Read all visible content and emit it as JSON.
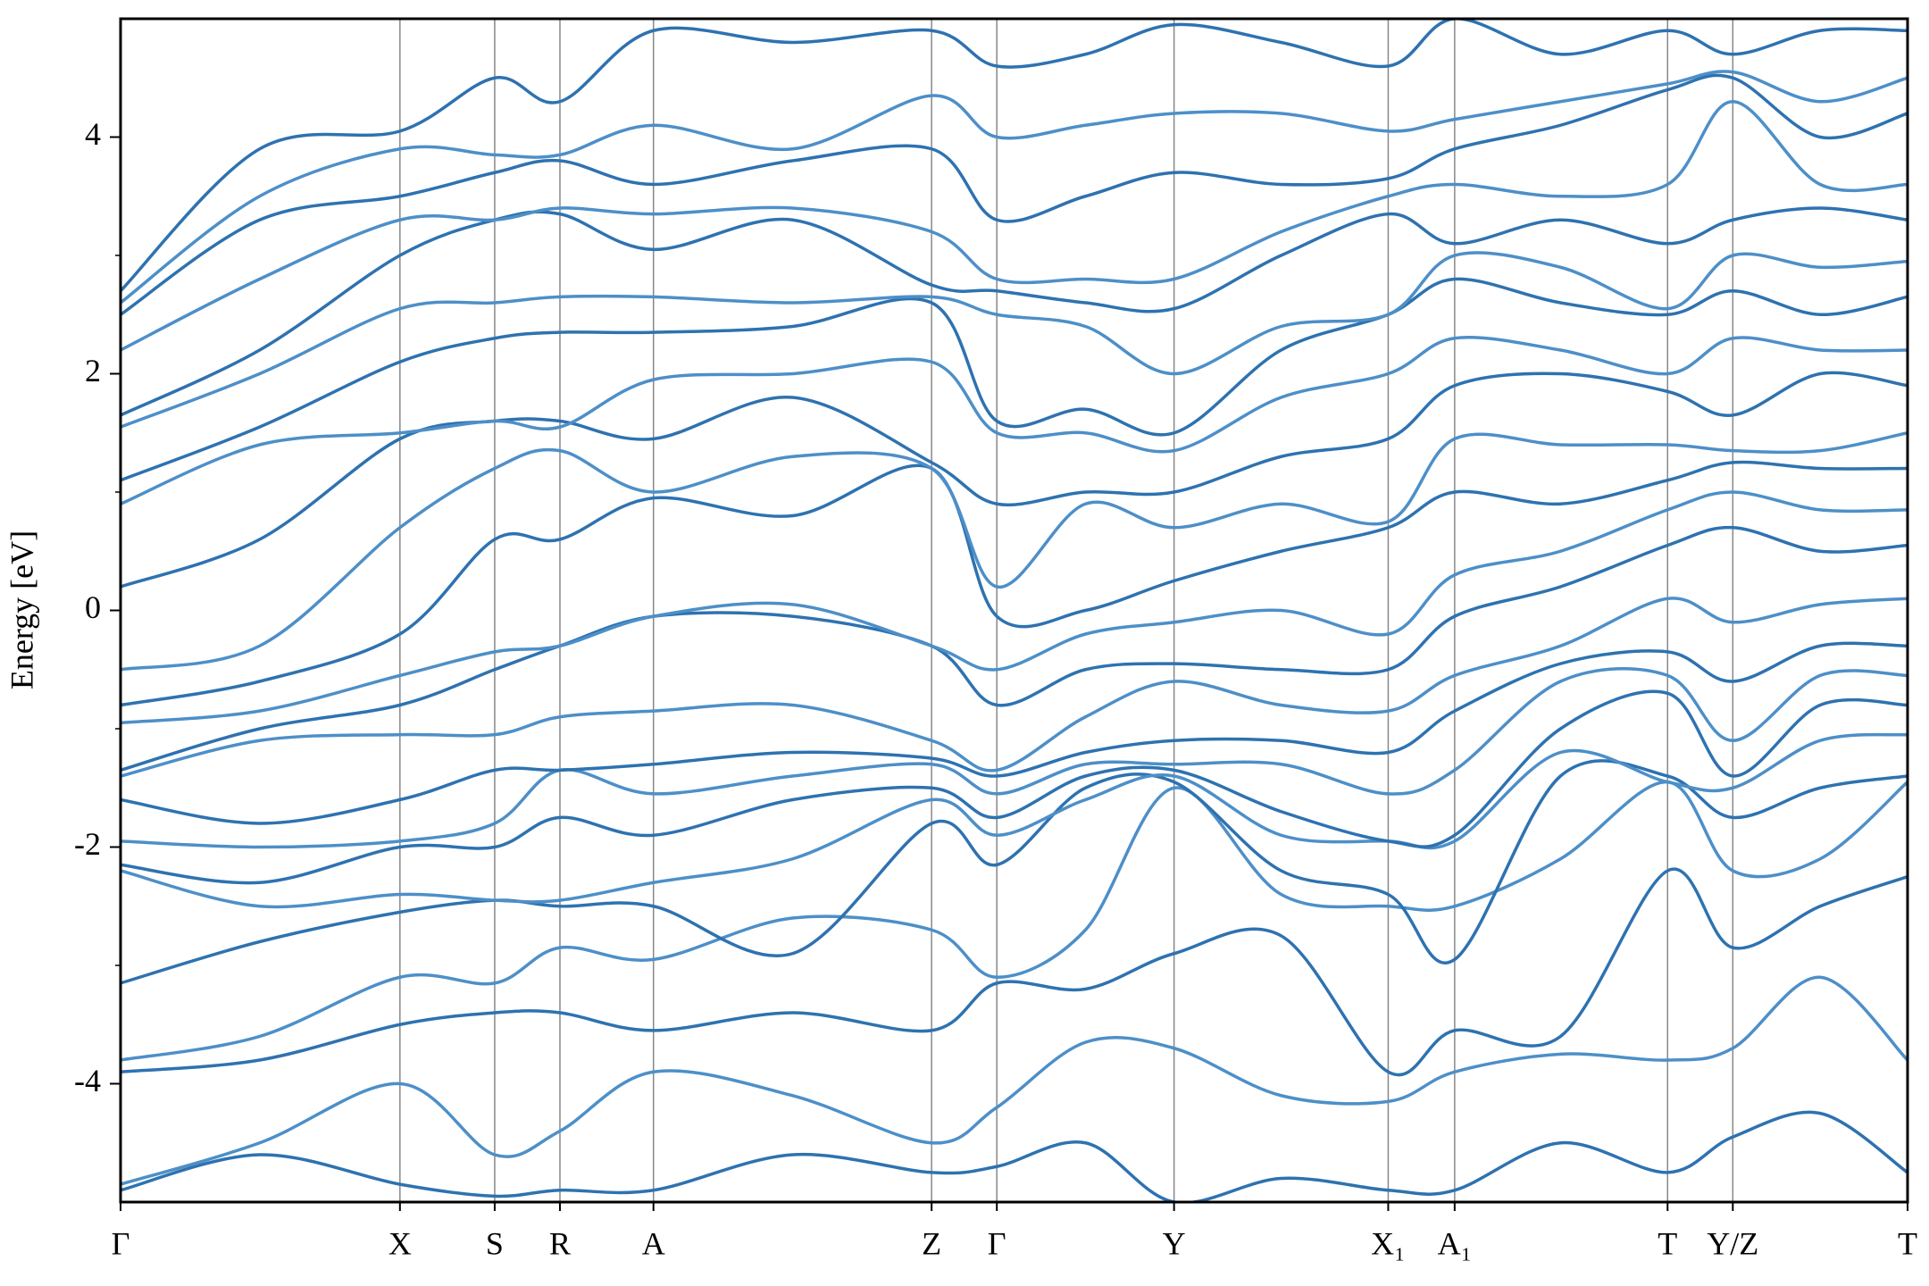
{
  "chart_data": {
    "type": "line",
    "y_label": "Energy [eV]",
    "x": [
      0,
      1.13,
      2.27,
      3.04,
      3.57,
      4.33,
      5.46,
      6.59,
      7.12,
      7.84,
      8.56,
      9.43,
      10.3,
      10.84,
      11.7,
      12.57,
      13.1,
      13.81,
      14.52
    ],
    "xlim": [
      0,
      14.52
    ],
    "xticks": [
      {
        "value": 0,
        "label": "Γ"
      },
      {
        "value": 2.27,
        "label": "X"
      },
      {
        "value": 3.04,
        "label": "S"
      },
      {
        "value": 3.57,
        "label": "R"
      },
      {
        "value": 4.33,
        "label": "A"
      },
      {
        "value": 6.59,
        "label": "Z"
      },
      {
        "value": 7.12,
        "label": "Γ"
      },
      {
        "value": 8.56,
        "label": "Y"
      },
      {
        "value": 10.3,
        "label": "X₁"
      },
      {
        "value": 10.84,
        "label": "A₁"
      },
      {
        "value": 12.57,
        "label": "T"
      },
      {
        "value": 13.1,
        "label": "Y/Z"
      },
      {
        "value": 14.52,
        "label": "T"
      }
    ],
    "ylim": [
      -5,
      5
    ],
    "yticks": [
      -4,
      -2,
      0,
      2,
      4
    ],
    "yminor": [
      -3,
      -1,
      1,
      3
    ],
    "kpoint_lines": true,
    "series": [
      {
        "color": "#2e72b0",
        "values": [
          -4.9,
          -4.6,
          -4.85,
          -4.95,
          -4.9,
          -4.9,
          -4.6,
          -4.75,
          -4.7,
          -4.5,
          -5.0,
          -4.8,
          -4.9,
          -4.9,
          -4.5,
          -4.75,
          -4.45,
          -4.25,
          -4.75
        ]
      },
      {
        "color": "#4d8fc8",
        "values": [
          -4.85,
          -4.5,
          -4.0,
          -4.6,
          -4.4,
          -3.9,
          -4.1,
          -4.5,
          -4.2,
          -3.65,
          -3.7,
          -4.1,
          -4.15,
          -3.9,
          -3.75,
          -3.8,
          -3.7,
          -3.1,
          -3.8
        ]
      },
      {
        "color": "#2e72b0",
        "values": [
          -3.9,
          -3.8,
          -3.5,
          -3.4,
          -3.4,
          -3.55,
          -3.4,
          -3.55,
          -3.15,
          -3.2,
          -2.9,
          -2.75,
          -3.9,
          -3.55,
          -3.6,
          -2.2,
          -2.85,
          -2.5,
          -2.25
        ]
      },
      {
        "color": "#4d8fc8",
        "values": [
          -3.8,
          -3.6,
          -3.1,
          -3.15,
          -2.85,
          -2.95,
          -2.6,
          -2.7,
          -3.1,
          -2.7,
          -1.5,
          -2.4,
          -2.5,
          -2.5,
          -2.1,
          -1.45,
          -2.2,
          -2.1,
          -1.45
        ]
      },
      {
        "color": "#2e72b0",
        "values": [
          -3.15,
          -2.8,
          -2.55,
          -2.45,
          -2.5,
          -2.5,
          -2.9,
          -1.8,
          -2.15,
          -1.5,
          -1.45,
          -2.2,
          -2.4,
          -2.95,
          -1.4,
          -1.4,
          -1.75,
          -1.5,
          -1.4
        ]
      },
      {
        "color": "#4d8fc8",
        "values": [
          -2.2,
          -2.5,
          -2.4,
          -2.45,
          -2.45,
          -2.3,
          -2.1,
          -1.6,
          -1.9,
          -1.6,
          -1.4,
          -1.9,
          -1.95,
          -1.95,
          -1.2,
          -1.45,
          -1.5,
          -1.1,
          -1.05
        ]
      },
      {
        "color": "#2e72b0",
        "values": [
          -2.15,
          -2.3,
          -2.0,
          -2.0,
          -1.75,
          -1.9,
          -1.6,
          -1.5,
          -1.75,
          -1.4,
          -1.35,
          -1.7,
          -1.95,
          -1.9,
          -1.0,
          -0.7,
          -1.4,
          -0.8,
          -0.8
        ]
      },
      {
        "color": "#4d8fc8",
        "values": [
          -1.95,
          -2.0,
          -1.95,
          -1.8,
          -1.35,
          -1.55,
          -1.4,
          -1.3,
          -1.55,
          -1.3,
          -1.3,
          -1.3,
          -1.55,
          -1.35,
          -0.6,
          -0.55,
          -1.1,
          -0.55,
          -0.55
        ]
      },
      {
        "color": "#2e72b0",
        "values": [
          -1.6,
          -1.8,
          -1.6,
          -1.35,
          -1.35,
          -1.3,
          -1.2,
          -1.25,
          -1.4,
          -1.2,
          -1.1,
          -1.1,
          -1.2,
          -0.85,
          -0.45,
          -0.35,
          -0.6,
          -0.3,
          -0.3
        ]
      },
      {
        "color": "#4d8fc8",
        "values": [
          -1.4,
          -1.1,
          -1.05,
          -1.05,
          -0.9,
          -0.85,
          -0.8,
          -1.1,
          -1.35,
          -0.9,
          -0.6,
          -0.8,
          -0.85,
          -0.55,
          -0.3,
          0.1,
          -0.1,
          0.05,
          0.1
        ]
      },
      {
        "color": "#2e72b0",
        "values": [
          -1.35,
          -1.0,
          -0.8,
          -0.5,
          -0.3,
          -0.05,
          -0.05,
          -0.3,
          -0.8,
          -0.5,
          -0.45,
          -0.5,
          -0.5,
          -0.05,
          0.2,
          0.55,
          0.7,
          0.5,
          0.55
        ]
      },
      {
        "color": "#4d8fc8",
        "values": [
          -0.95,
          -0.85,
          -0.55,
          -0.35,
          -0.3,
          -0.05,
          0.05,
          -0.3,
          -0.5,
          -0.2,
          -0.1,
          0.0,
          -0.2,
          0.3,
          0.5,
          0.85,
          1.0,
          0.85,
          0.85
        ]
      },
      {
        "color": "#2e72b0",
        "values": [
          -0.8,
          -0.6,
          -0.2,
          0.6,
          0.6,
          0.95,
          0.8,
          1.2,
          -0.05,
          0.0,
          0.25,
          0.5,
          0.7,
          1.0,
          0.9,
          1.1,
          1.25,
          1.2,
          1.2
        ]
      },
      {
        "color": "#4d8fc8",
        "values": [
          -0.5,
          -0.3,
          0.7,
          1.2,
          1.35,
          1.0,
          1.3,
          1.2,
          0.2,
          0.9,
          0.7,
          0.9,
          0.75,
          1.45,
          1.4,
          1.4,
          1.35,
          1.35,
          1.5
        ]
      },
      {
        "color": "#2e72b0",
        "values": [
          0.2,
          0.6,
          1.45,
          1.6,
          1.6,
          1.45,
          1.8,
          1.25,
          0.9,
          1.0,
          1.0,
          1.3,
          1.45,
          1.9,
          2.0,
          1.85,
          1.65,
          2.0,
          1.9
        ]
      },
      {
        "color": "#4d8fc8",
        "values": [
          0.9,
          1.4,
          1.5,
          1.6,
          1.55,
          1.95,
          2.0,
          2.1,
          1.5,
          1.5,
          1.35,
          1.8,
          2.0,
          2.3,
          2.2,
          2.0,
          2.3,
          2.2,
          2.2
        ]
      },
      {
        "color": "#2e72b0",
        "values": [
          1.1,
          1.55,
          2.1,
          2.3,
          2.35,
          2.35,
          2.4,
          2.6,
          1.6,
          1.7,
          1.5,
          2.2,
          2.5,
          2.8,
          2.6,
          2.5,
          2.7,
          2.5,
          2.65
        ]
      },
      {
        "color": "#4d8fc8",
        "values": [
          1.55,
          2.0,
          2.55,
          2.6,
          2.65,
          2.65,
          2.6,
          2.65,
          2.5,
          2.4,
          2.0,
          2.4,
          2.5,
          3.0,
          2.9,
          2.55,
          3.0,
          2.9,
          2.95
        ]
      },
      {
        "color": "#2e72b0",
        "values": [
          1.65,
          2.2,
          3.0,
          3.3,
          3.35,
          3.05,
          3.3,
          2.75,
          2.7,
          2.6,
          2.55,
          3.0,
          3.35,
          3.1,
          3.3,
          3.1,
          3.3,
          3.4,
          3.3
        ]
      },
      {
        "color": "#4d8fc8",
        "values": [
          2.2,
          2.8,
          3.3,
          3.3,
          3.4,
          3.35,
          3.4,
          3.2,
          2.8,
          2.8,
          2.8,
          3.2,
          3.5,
          3.6,
          3.5,
          3.6,
          4.3,
          3.6,
          3.6
        ]
      },
      {
        "color": "#2e72b0",
        "values": [
          2.5,
          3.3,
          3.5,
          3.7,
          3.8,
          3.6,
          3.8,
          3.9,
          3.3,
          3.5,
          3.7,
          3.6,
          3.65,
          3.9,
          4.1,
          4.4,
          4.5,
          4.0,
          4.2
        ]
      },
      {
        "color": "#4d8fc8",
        "values": [
          2.6,
          3.5,
          3.9,
          3.85,
          3.85,
          4.1,
          3.9,
          4.35,
          4.0,
          4.1,
          4.2,
          4.2,
          4.05,
          4.15,
          4.3,
          4.45,
          4.55,
          4.3,
          4.5
        ]
      },
      {
        "color": "#2e72b0",
        "values": [
          2.7,
          3.9,
          4.05,
          4.5,
          4.3,
          4.9,
          4.8,
          4.9,
          4.6,
          4.7,
          4.95,
          4.8,
          4.6,
          5.0,
          4.7,
          4.9,
          4.7,
          4.9,
          4.9
        ]
      }
    ]
  }
}
